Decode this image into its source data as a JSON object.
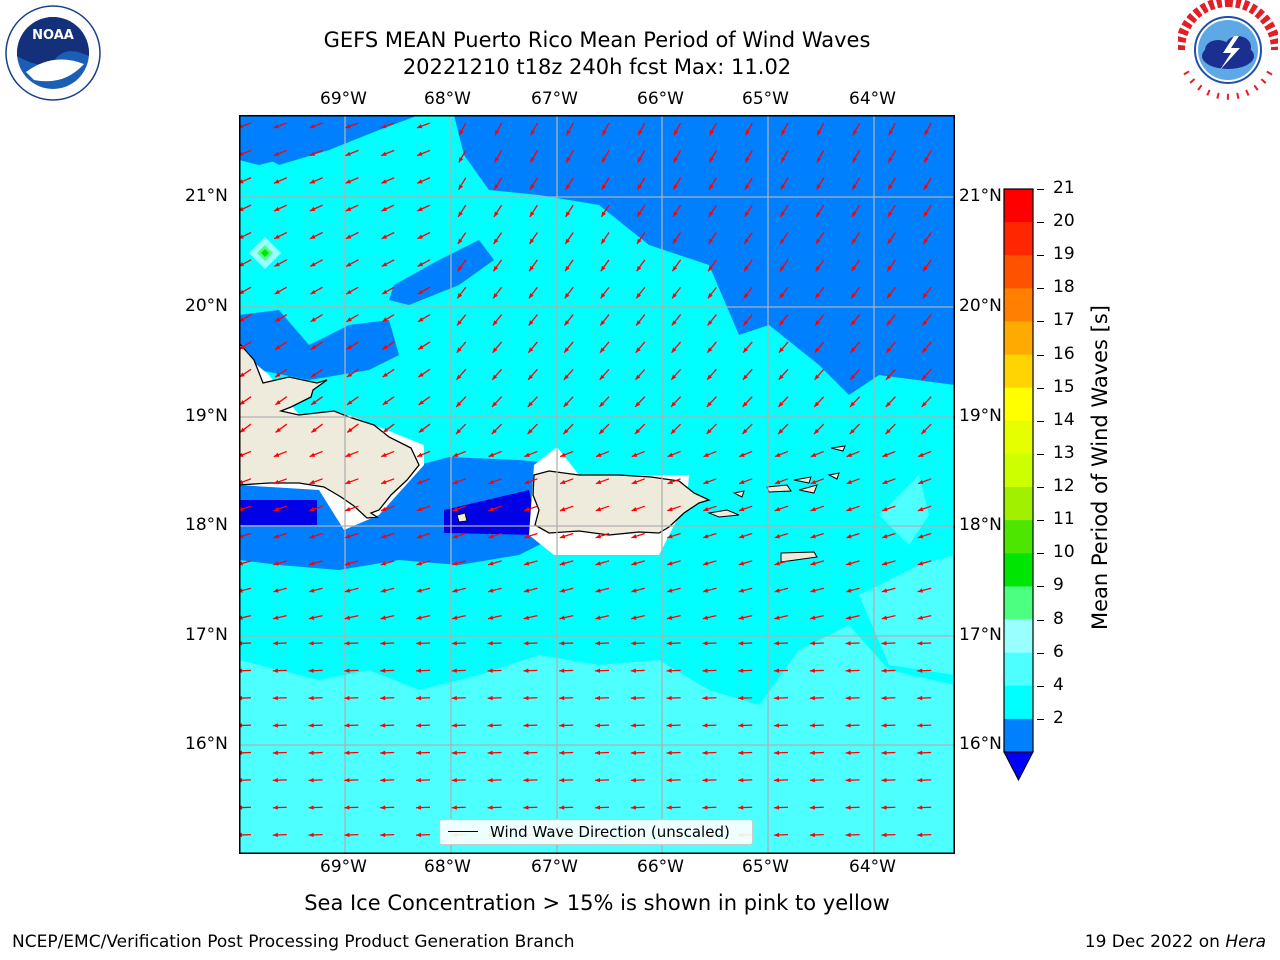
{
  "header": {
    "title_line1": "GEFS MEAN Puerto Rico Mean Period of Wind Waves",
    "title_line2": "20221210 t18z 240h fcst   Max: 11.02"
  },
  "logos": {
    "left": {
      "icon": "noaa-logo",
      "text": "NOAA"
    },
    "right": {
      "icon": "nws-logo"
    }
  },
  "map": {
    "lon_ticks": [
      "69°W",
      "68°W",
      "67°W",
      "66°W",
      "65°W",
      "64°W"
    ],
    "lat_ticks": [
      "21°N",
      "20°N",
      "19°N",
      "18°N",
      "17°N",
      "16°N"
    ],
    "colors": {
      "ocean_light": "#4dffff",
      "ocean_cyan": "#00ffff",
      "ocean_blue": "#0080ff",
      "ocean_deep": "#0000e6",
      "land": "#efebdc",
      "arrow": "#ff0000",
      "grid": "#b0b0b0"
    }
  },
  "legend": {
    "label": "Wind Wave Direction (unscaled)"
  },
  "colorbar": {
    "title": "Mean Period of Wind Waves [s]",
    "levels": [
      "21",
      "20",
      "19",
      "18",
      "17",
      "16",
      "15",
      "14",
      "13",
      "12",
      "11",
      "10",
      "9",
      "8",
      "6",
      "4",
      "2"
    ],
    "colors": [
      "#ff0000",
      "#ff2600",
      "#ff5200",
      "#ff8000",
      "#ffaa00",
      "#ffd400",
      "#ffff00",
      "#e6ff00",
      "#ccff00",
      "#a0f000",
      "#4ce600",
      "#00e600",
      "#4dff80",
      "#99ffff",
      "#4dffff",
      "#00ffff",
      "#0080ff"
    ],
    "extend_color": "#0000ff"
  },
  "footer": {
    "subtitle": "Sea Ice Concentration > 15% is shown in pink to yellow",
    "left": "NCEP/EMC/Verification Post Processing Product Generation Branch",
    "right_date": "19 Dec 2022 on ",
    "right_host": "Hera"
  }
}
